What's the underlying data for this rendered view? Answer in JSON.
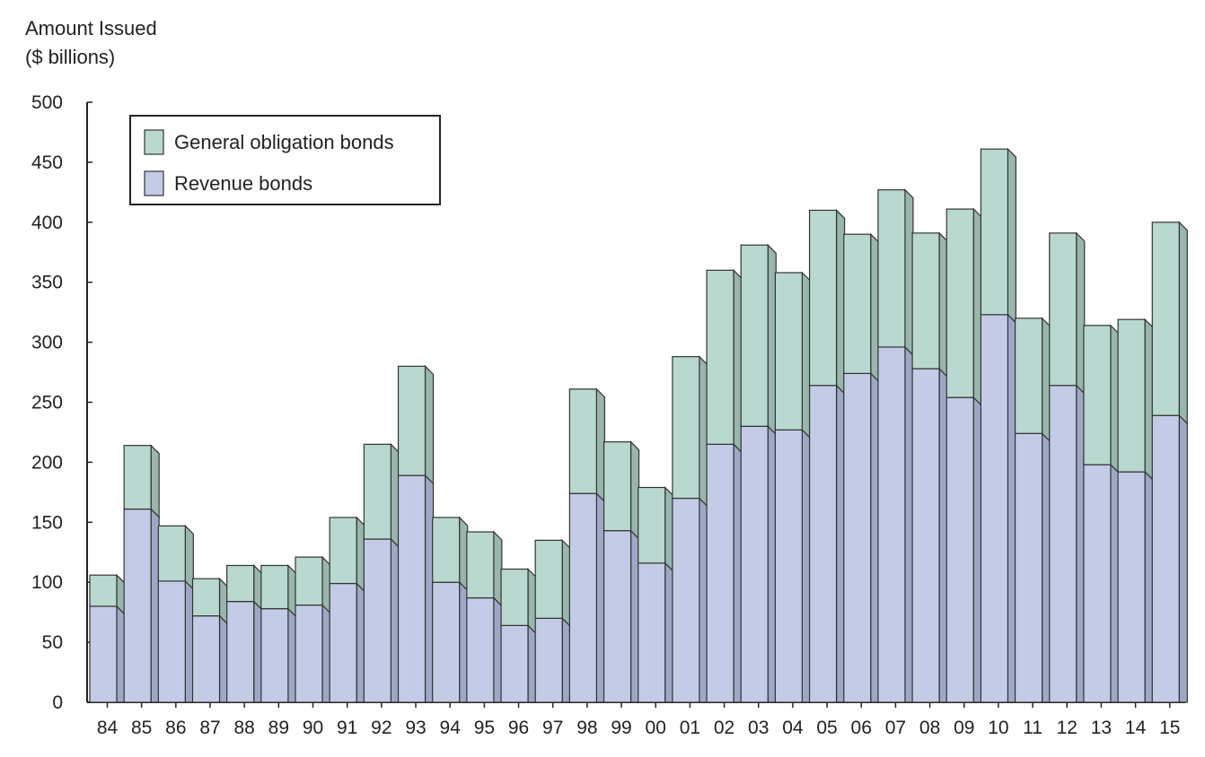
{
  "chart_data": {
    "type": "bar",
    "stacked": true,
    "style": "3d-column",
    "ylabel": [
      "Amount Issued",
      "($ billions)"
    ],
    "xlabel": "",
    "ylim": [
      0,
      500
    ],
    "yticks": [
      0,
      50,
      100,
      150,
      200,
      250,
      300,
      350,
      400,
      450,
      500
    ],
    "categories": [
      "84",
      "85",
      "86",
      "87",
      "88",
      "89",
      "90",
      "91",
      "92",
      "93",
      "94",
      "95",
      "96",
      "97",
      "98",
      "99",
      "00",
      "01",
      "02",
      "03",
      "04",
      "05",
      "06",
      "07",
      "08",
      "09",
      "10",
      "11",
      "12",
      "13",
      "14",
      "15"
    ],
    "series": [
      {
        "name": "Revenue bonds",
        "color": "#c3cbe6",
        "values": [
          80,
          161,
          101,
          72,
          84,
          78,
          81,
          99,
          136,
          189,
          100,
          87,
          64,
          70,
          174,
          143,
          116,
          170,
          215,
          230,
          227,
          264,
          274,
          296,
          278,
          254,
          323,
          224,
          264,
          198,
          192,
          239
        ]
      },
      {
        "name": "General obligation bonds",
        "color": "#b9d8cf",
        "values": [
          26,
          53,
          46,
          31,
          30,
          36,
          40,
          55,
          79,
          91,
          54,
          55,
          47,
          65,
          87,
          74,
          63,
          118,
          145,
          151,
          131,
          146,
          116,
          131,
          113,
          157,
          138,
          96,
          127,
          116,
          127,
          161
        ]
      }
    ],
    "legend": {
      "position": "top-left",
      "entries": [
        "General obligation bonds",
        "Revenue bonds"
      ]
    },
    "grid": false,
    "outline_color": "#333333",
    "side_shade_revenue": "#9ea8c6",
    "side_shade_go": "#98b6ad"
  }
}
